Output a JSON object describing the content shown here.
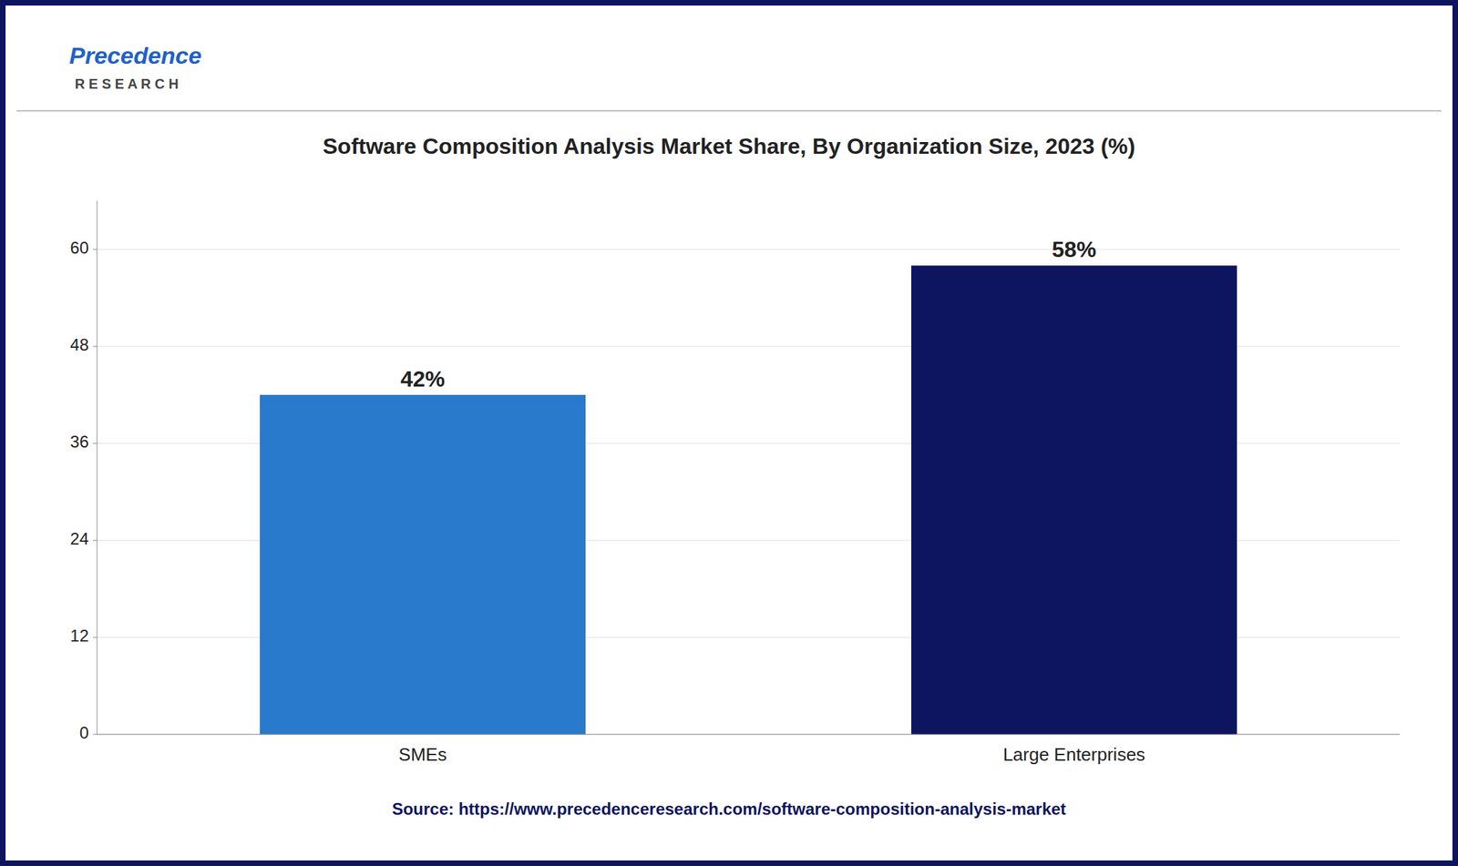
{
  "chart_data": {
    "type": "bar",
    "title": "Software Composition Analysis Market Share, By Organization Size, 2023 (%)",
    "categories": [
      "SMEs",
      "Large Enterprises"
    ],
    "values": [
      42,
      58
    ],
    "value_labels": [
      "42%",
      "58%"
    ],
    "data_labels": true,
    "colors": [
      "#2979CC",
      "#0D1560"
    ],
    "ylim": [
      0,
      66
    ],
    "yticks": [
      0,
      12,
      24,
      36,
      48,
      60
    ],
    "grid": true,
    "annotations": [
      "Precedence",
      "R E S E A R C H",
      "Source: https://www.precedenceresearch.com/software-composition-analysis-market"
    ]
  }
}
